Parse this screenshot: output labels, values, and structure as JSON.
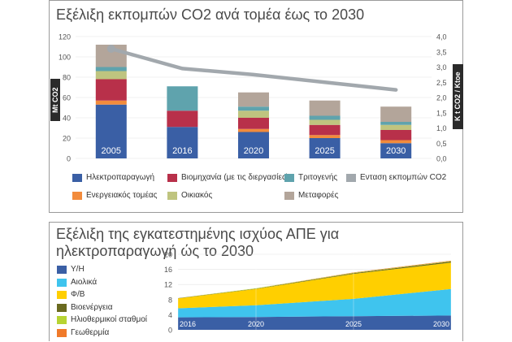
{
  "chart_data": [
    {
      "type": "bar",
      "title": "Εξέλιξη εκπομπών CO2 ανά τομέα έως το 2030",
      "ylabel": "Mt CO2",
      "y2label": "Κ t CO2 / Ktoe",
      "ylim": [
        0,
        120
      ],
      "y2lim": [
        0,
        4
      ],
      "yticks": [
        "0",
        "20",
        "40",
        "60",
        "80",
        "100",
        "120"
      ],
      "y2ticks": [
        "0,0",
        "0,5",
        "1,0",
        "1,5",
        "2,0",
        "2,5",
        "3,0",
        "3,5",
        "4,0"
      ],
      "categories": [
        "2005",
        "2016",
        "2020",
        "2025",
        "2030"
      ],
      "stacked": true,
      "series": [
        {
          "name": "Ηλεκτροπαραγωγή",
          "color": "#3a5fa5",
          "values": [
            53,
            31,
            26,
            20,
            15
          ]
        },
        {
          "name": "Ενεργειακός τομέας",
          "color": "#f28b3c",
          "values": [
            4,
            0,
            3,
            3,
            3
          ]
        },
        {
          "name": "Βιομηχανία (με τις διεργασίες)",
          "color": "#b8304a",
          "values": [
            21,
            16,
            11,
            10,
            10
          ]
        },
        {
          "name": "Οικιακός",
          "color": "#bfc47f",
          "values": [
            8,
            0,
            7,
            5,
            5
          ]
        },
        {
          "name": "Τριτογενής",
          "color": "#5fa3ad",
          "values": [
            4,
            24,
            4,
            4,
            3
          ]
        },
        {
          "name": "Μεταφορές",
          "color": "#b3a59a",
          "values": [
            22,
            0,
            14,
            15,
            15
          ]
        }
      ],
      "line": {
        "name": "Ενταση εκπομπών CO2",
        "color": "#a2a8ad",
        "values": [
          3.6,
          2.95,
          2.75,
          2.5,
          2.25
        ]
      },
      "legend_order": [
        "Ηλεκτροπαραγωγή",
        "Βιομηχανία (με τις διεργασίες)",
        "Τριτογενής",
        "Ενταση εκπομπών CO2",
        "Ενεργειακός τομέας",
        "Οικιακός",
        "Μεταφορές"
      ]
    },
    {
      "type": "area",
      "title": "Εξέλιξη της εγκατεστημένης ισχύος ΑΠΕ για ηλεκτροπαραγωγή ώς το 2030",
      "ylim": [
        0,
        20
      ],
      "yticks": [
        "0",
        "4",
        "8",
        "12",
        "16",
        "20"
      ],
      "x": [
        "2016",
        "2020",
        "2025",
        "2030"
      ],
      "xpos": [
        2016,
        2020,
        2025,
        2030
      ],
      "stacked": true,
      "series": [
        {
          "name": "Υ/Η",
          "color": "#3a5fa5",
          "values": [
            3.3,
            3.4,
            3.6,
            3.8
          ]
        },
        {
          "name": "Αιολικά",
          "color": "#3fc4ee",
          "values": [
            2.4,
            3.1,
            4.6,
            7.0
          ]
        },
        {
          "name": "Φ/Β",
          "color": "#ffcf00",
          "values": [
            2.6,
            4.3,
            6.6,
            7.0
          ]
        },
        {
          "name": "Βιοενέργεια",
          "color": "#6a6a1f",
          "values": [
            0.1,
            0.1,
            0.2,
            0.3
          ]
        },
        {
          "name": "Ηλιοθερμικοί σταθμοί",
          "color": "#b7d433",
          "values": [
            0.0,
            0.1,
            0.1,
            0.1
          ]
        },
        {
          "name": "Γεωθερμία",
          "color": "#f07a2a",
          "values": [
            0.0,
            0.0,
            0.1,
            0.1
          ]
        }
      ]
    }
  ]
}
